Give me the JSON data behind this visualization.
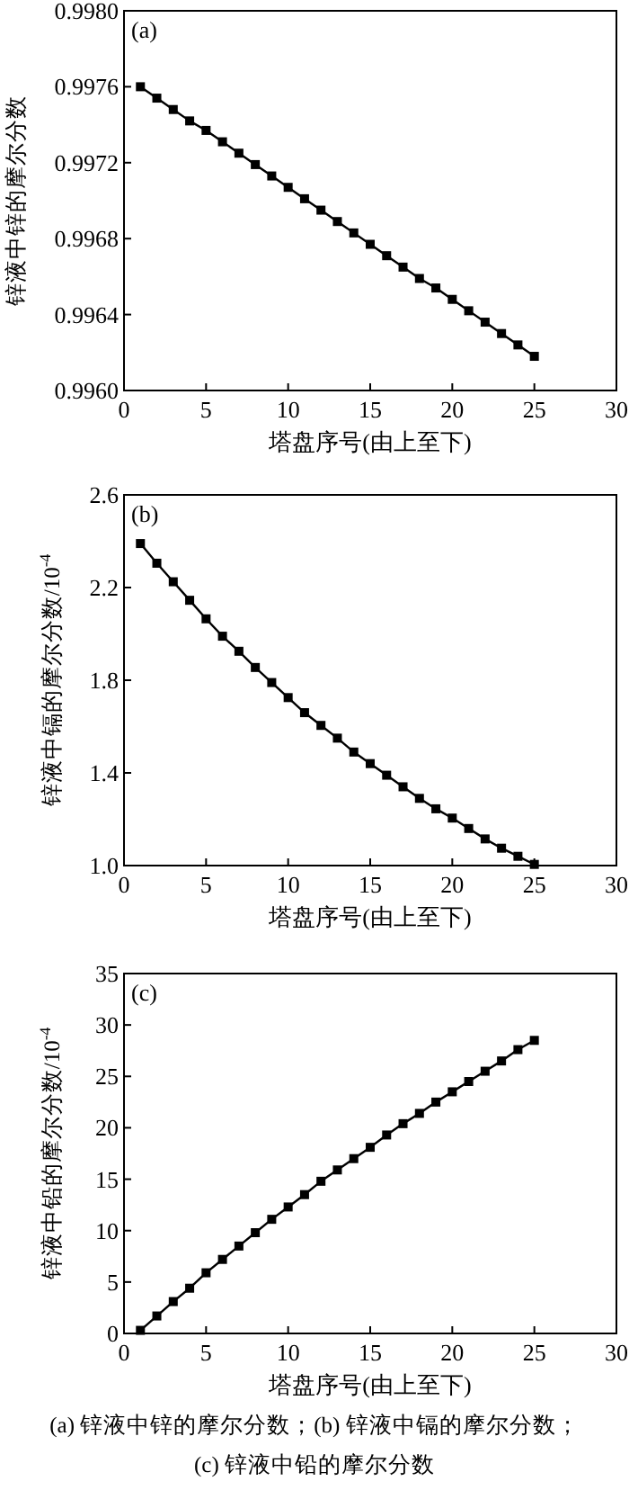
{
  "chart_data": [
    {
      "type": "line",
      "marker": "square",
      "line_style": "solid",
      "color": "#000000",
      "annotations": [
        "(a)"
      ],
      "xlabel": "塔盘序号(由上至下)",
      "ylabel": "锌液中锌的摩尔分数",
      "xlim": [
        0,
        30
      ],
      "xticks": [
        0,
        5,
        10,
        15,
        20,
        25,
        30
      ],
      "ylim": [
        0.996,
        0.998
      ],
      "yticks": [
        {
          "value": 0.996,
          "label": "0.9960"
        },
        {
          "value": 0.9964,
          "label": "0.9964"
        },
        {
          "value": 0.9968,
          "label": "0.9968"
        },
        {
          "value": 0.9972,
          "label": "0.9972"
        },
        {
          "value": 0.9976,
          "label": "0.9976"
        },
        {
          "value": 0.998,
          "label": "0.9980"
        }
      ],
      "x": [
        1,
        2,
        3,
        4,
        5,
        6,
        7,
        8,
        9,
        10,
        11,
        12,
        13,
        14,
        15,
        16,
        17,
        18,
        19,
        20,
        21,
        22,
        23,
        24,
        25
      ],
      "values": [
        0.9976,
        0.99754,
        0.99748,
        0.99742,
        0.99737,
        0.99731,
        0.99725,
        0.99719,
        0.99713,
        0.99707,
        0.99701,
        0.99695,
        0.99689,
        0.99683,
        0.99677,
        0.99671,
        0.99665,
        0.99659,
        0.99654,
        0.99648,
        0.99642,
        0.99636,
        0.9963,
        0.99624,
        0.99618
      ]
    },
    {
      "type": "line",
      "marker": "square",
      "line_style": "solid",
      "color": "#000000",
      "annotations": [
        "(b)"
      ],
      "xlabel": "塔盘序号(由上至下)",
      "ylabel": "锌液中镉的摩尔分数/10$^{-4}$",
      "xlim": [
        0,
        30
      ],
      "xticks": [
        0,
        5,
        10,
        15,
        20,
        25,
        30
      ],
      "ylim": [
        1.0,
        2.6
      ],
      "yticks": [
        {
          "value": 1.0,
          "label": "1.0"
        },
        1.4,
        1.8,
        2.2,
        2.6
      ],
      "x": [
        1,
        2,
        3,
        4,
        5,
        6,
        7,
        8,
        9,
        10,
        11,
        12,
        13,
        14,
        15,
        16,
        17,
        18,
        19,
        20,
        21,
        22,
        23,
        24,
        25
      ],
      "values": [
        2.39,
        2.305,
        2.225,
        2.145,
        2.065,
        1.99,
        1.925,
        1.855,
        1.79,
        1.725,
        1.66,
        1.605,
        1.55,
        1.49,
        1.44,
        1.39,
        1.34,
        1.29,
        1.245,
        1.205,
        1.16,
        1.115,
        1.075,
        1.04,
        1.005
      ]
    },
    {
      "type": "line",
      "marker": "square",
      "line_style": "solid",
      "color": "#000000",
      "annotations": [
        "(c)",
        "(a) 锌液中锌的摩尔分数；(b) 锌液中镉的摩尔分数；",
        "(c) 锌液中铅的摩尔分数"
      ],
      "xlabel": "塔盘序号(由上至下)",
      "ylabel": "锌液中铅的摩尔分数/10$^{-4}$",
      "xlim": [
        0,
        30
      ],
      "xticks": [
        0,
        5,
        10,
        15,
        20,
        25,
        30
      ],
      "ylim": [
        0,
        35
      ],
      "yticks": [
        0,
        5,
        10,
        15,
        20,
        25,
        30,
        35
      ],
      "x": [
        1,
        2,
        3,
        4,
        5,
        6,
        7,
        8,
        9,
        10,
        11,
        12,
        13,
        14,
        15,
        16,
        17,
        18,
        19,
        20,
        21,
        22,
        23,
        24,
        25
      ],
      "values": [
        0.3,
        1.7,
        3.1,
        4.4,
        5.9,
        7.2,
        8.5,
        9.8,
        11.1,
        12.3,
        13.5,
        14.8,
        15.9,
        17.0,
        18.1,
        19.3,
        20.4,
        21.4,
        22.5,
        23.5,
        24.5,
        25.5,
        26.5,
        27.6,
        28.5
      ]
    }
  ]
}
